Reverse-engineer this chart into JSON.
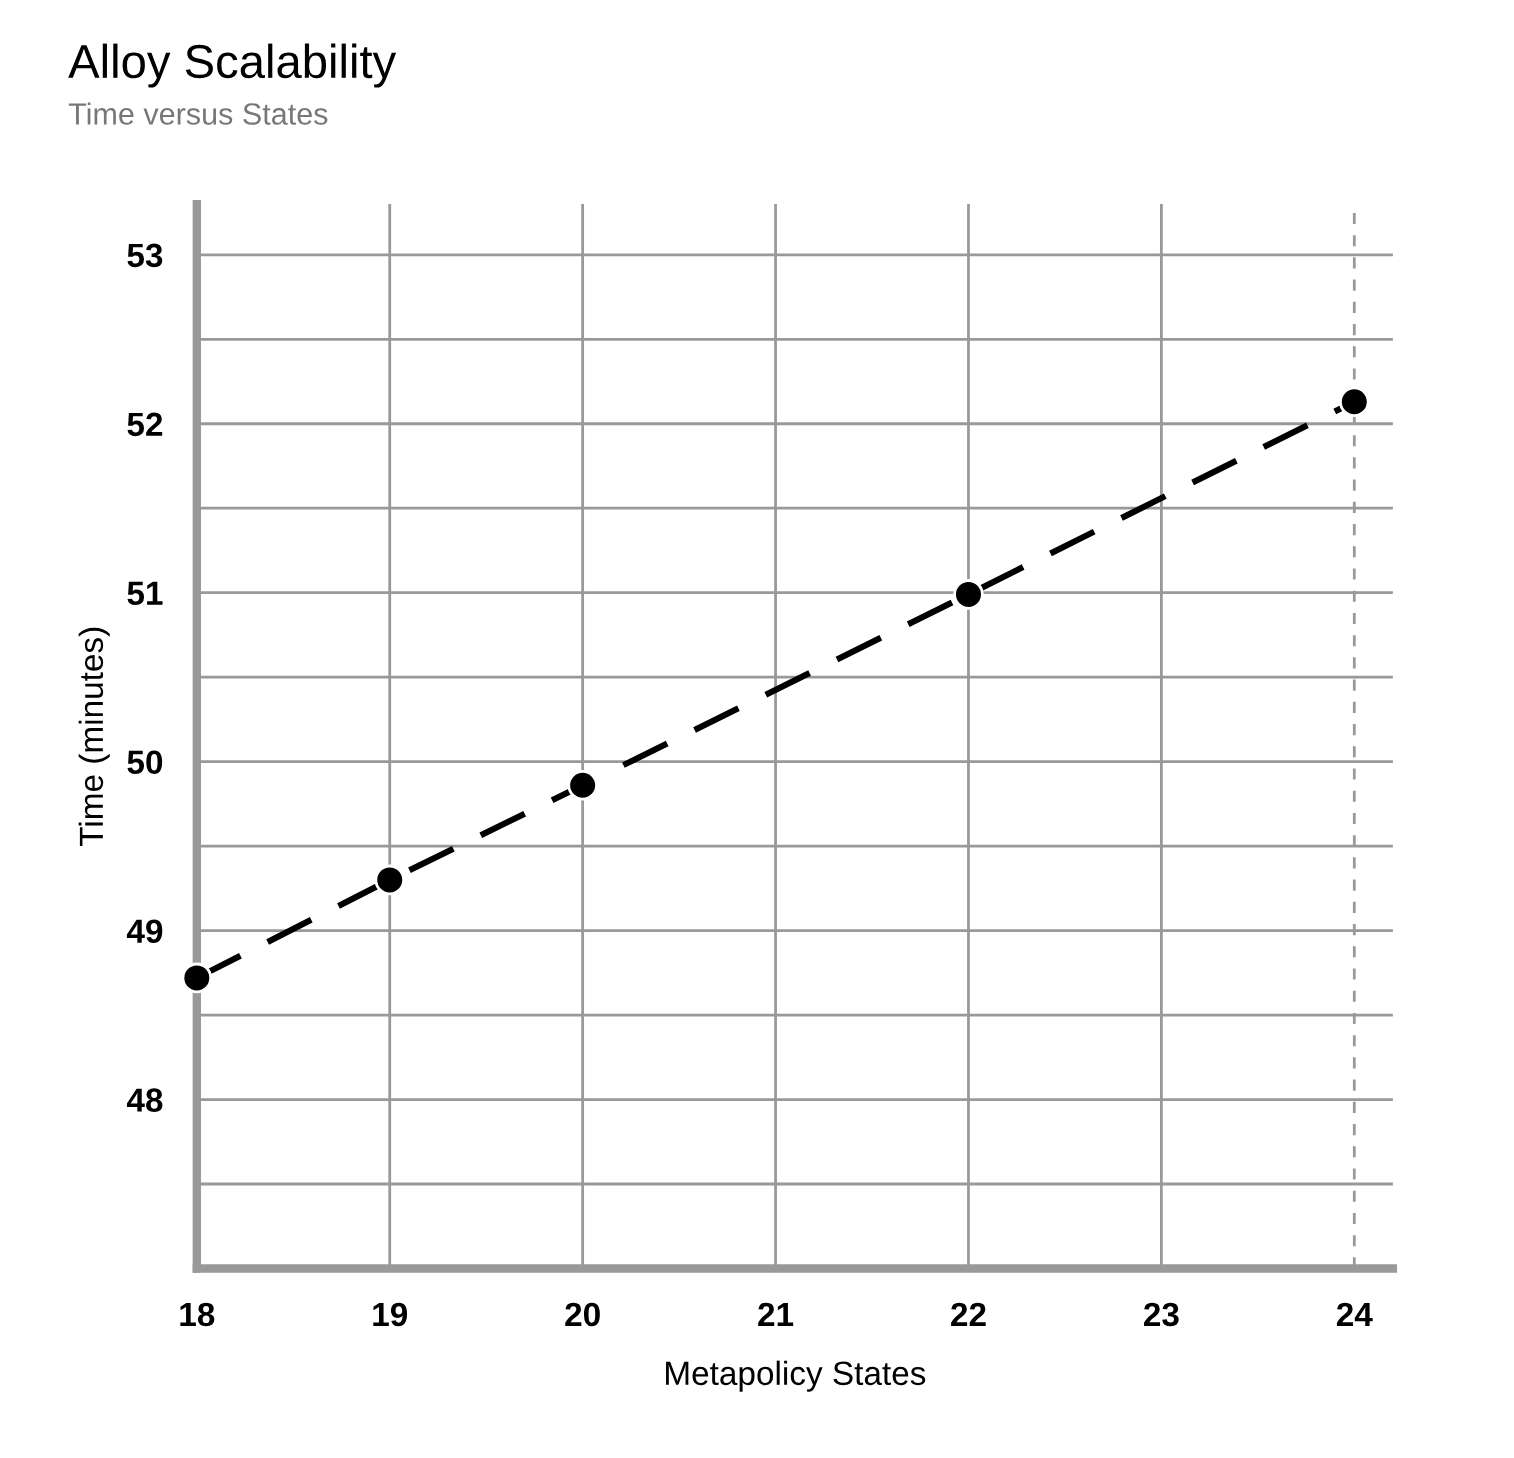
{
  "chart_data": {
    "type": "line",
    "title": "Alloy Scalability",
    "subtitle": "Time versus States",
    "xlabel": "Metapolicy States",
    "ylabel": "Time (minutes)",
    "x": [
      18,
      19,
      20,
      22,
      24
    ],
    "series": [
      {
        "color": "#000000",
        "values": [
          48.72,
          49.3,
          49.86,
          50.99,
          52.13
        ]
      }
    ],
    "xlim": [
      18,
      24.2
    ],
    "xticks": [
      18,
      19,
      20,
      21,
      22,
      23,
      24
    ],
    "ylim": [
      47,
      53.3
    ],
    "yticks": [
      {
        "value": 47.5,
        "label": null
      },
      48,
      {
        "value": 48.5,
        "label": null
      },
      49,
      {
        "value": 49.5,
        "label": null
      },
      50,
      {
        "value": 50.5,
        "label": null
      },
      51,
      {
        "value": 51.5,
        "label": null
      },
      52,
      {
        "value": 52.5,
        "label": null
      },
      53
    ],
    "grid": true,
    "marker": "circle",
    "line_style": "dashed",
    "ref_lines": [
      {
        "axis": "x",
        "value": 24,
        "color": "#999999",
        "line_style": "dashed"
      }
    ]
  }
}
